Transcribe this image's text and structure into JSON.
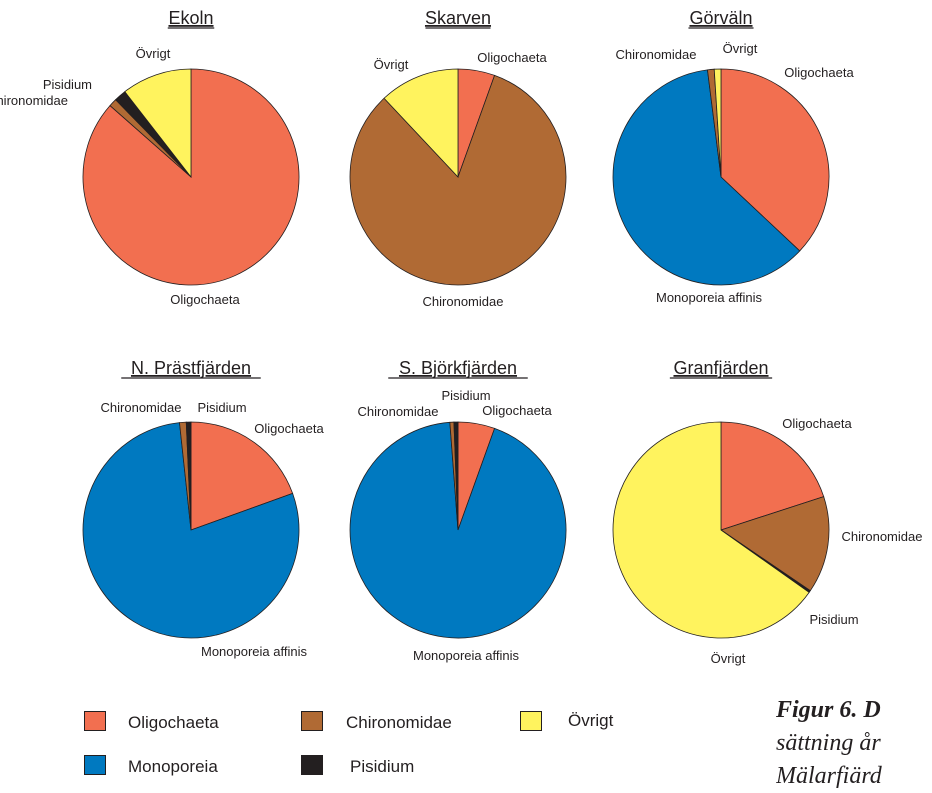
{
  "colors": {
    "Oligochaeta": "#f26f50",
    "Chironomidae": "#b06a34",
    "Övrigt": "#fff35e",
    "Monoporeia": "#0079c0",
    "Pisidium": "#231f20"
  },
  "chart_data": [
    {
      "type": "pie",
      "title": "Ekoln",
      "slices": [
        {
          "label": "Oligochaeta",
          "value": 86.5,
          "color": "#f26f50"
        },
        {
          "label": "Chironomidae",
          "value": 1.2,
          "color": "#b06a34"
        },
        {
          "label": "Pisidium",
          "value": 1.8,
          "color": "#231f20"
        },
        {
          "label": "Övrigt",
          "value": 10.5,
          "color": "#fff35e"
        }
      ]
    },
    {
      "type": "pie",
      "title": "Skarven",
      "slices": [
        {
          "label": "Oligochaeta",
          "value": 5.5,
          "color": "#f26f50"
        },
        {
          "label": "Chironomidae",
          "value": 82.5,
          "color": "#b06a34"
        },
        {
          "label": "Övrigt",
          "value": 12,
          "color": "#fff35e"
        }
      ]
    },
    {
      "type": "pie",
      "title": "Görväln",
      "slices": [
        {
          "label": "Oligochaeta",
          "value": 37,
          "color": "#f26f50"
        },
        {
          "label": "Monoporeia affinis",
          "value": 61,
          "color": "#0079c0"
        },
        {
          "label": "Chironomidae",
          "value": 1,
          "color": "#b06a34"
        },
        {
          "label": "Övrigt",
          "value": 1,
          "color": "#fff35e"
        }
      ]
    },
    {
      "type": "pie",
      "title": "N. Prästfjärden",
      "slices": [
        {
          "label": "Oligochaeta",
          "value": 19.5,
          "color": "#f26f50"
        },
        {
          "label": "Monoporeia affinis",
          "value": 78.8,
          "color": "#0079c0"
        },
        {
          "label": "Chironomidae",
          "value": 1,
          "color": "#b06a34"
        },
        {
          "label": "Pisidium",
          "value": 0.7,
          "color": "#231f20"
        }
      ]
    },
    {
      "type": "pie",
      "title": "S. Björkfjärden",
      "slices": [
        {
          "label": "Oligochaeta",
          "value": 5.5,
          "color": "#f26f50"
        },
        {
          "label": "Monoporeia affinis",
          "value": 93.3,
          "color": "#0079c0"
        },
        {
          "label": "Chironomidae",
          "value": 0.6,
          "color": "#b06a34"
        },
        {
          "label": "Pisidium",
          "value": 0.6,
          "color": "#231f20"
        }
      ]
    },
    {
      "type": "pie",
      "title": "Granfjärden",
      "slices": [
        {
          "label": "Oligochaeta",
          "value": 20,
          "color": "#f26f50"
        },
        {
          "label": "Chironomidae",
          "value": 14.5,
          "color": "#b06a34"
        },
        {
          "label": "Pisidium",
          "value": 0.3,
          "color": "#231f20"
        },
        {
          "label": "Övrigt",
          "value": 65.2,
          "color": "#fff35e"
        }
      ]
    }
  ],
  "legend": [
    {
      "label": "Oligochaeta",
      "color": "#f26f50"
    },
    {
      "label": "Chironomidae",
      "color": "#b06a34"
    },
    {
      "label": "Övrigt",
      "color": "#fff35e"
    },
    {
      "label": "Monoporeia",
      "color": "#0079c0"
    },
    {
      "label": "Pisidium",
      "color": "#231f20"
    }
  ],
  "caption": {
    "fig_label": "Figur 6. D",
    "line2": "sättning år",
    "line3": "Mälarfiärd"
  }
}
